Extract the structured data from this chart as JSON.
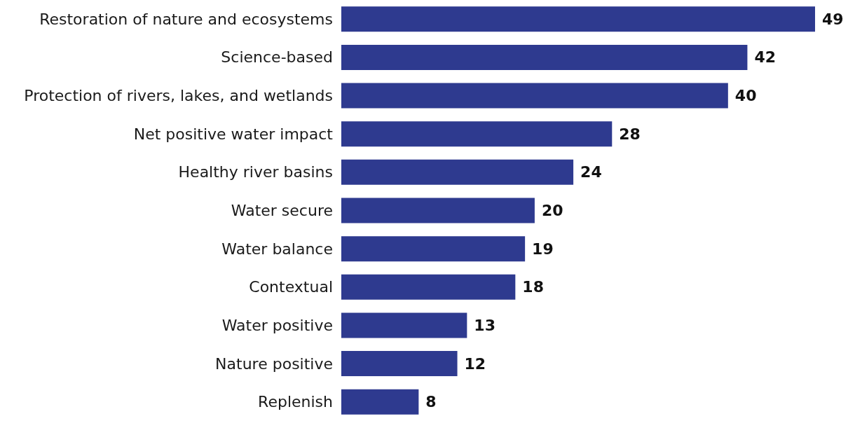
{
  "chart_data": {
    "type": "bar",
    "orientation": "horizontal",
    "data_labels": true,
    "categories": [
      "Restoration of nature and ecosystems",
      "Science-based",
      "Protection of rivers, lakes, and wetlands",
      "Net positive water impact",
      "Healthy river basins",
      "Water secure",
      "Water balance",
      "Contextual",
      "Water positive",
      "Nature positive",
      "Replenish"
    ],
    "values": [
      49,
      42,
      40,
      28,
      24,
      20,
      19,
      18,
      13,
      12,
      8
    ],
    "color": "#2e3a8f"
  }
}
